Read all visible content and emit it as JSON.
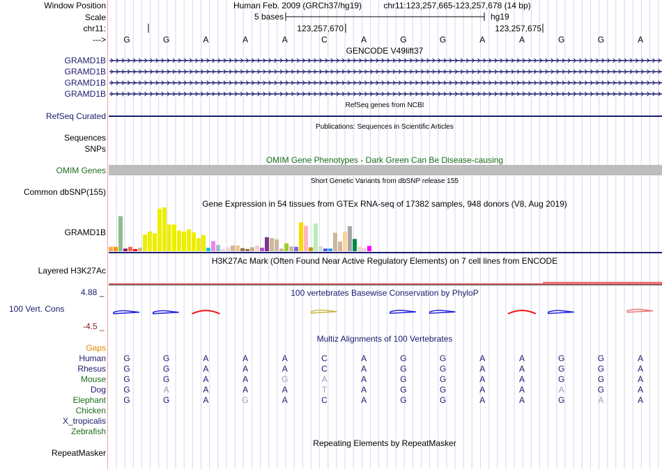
{
  "header": {
    "window_position_label": "Window Position",
    "assembly": "Human Feb. 2009 (GRCh37/hg19)",
    "position": "chr11:123,257,665-123,257,678 (14 bp)",
    "scale_label": "Scale",
    "scale_text": "5 bases",
    "scale_db": "hg19",
    "chrom_label": "chr11:",
    "tick1": "123,257,670",
    "tick2": "123,257,675",
    "strand_label": "--->",
    "bases": [
      "G",
      "G",
      "A",
      "A",
      "A",
      "C",
      "A",
      "G",
      "G",
      "A",
      "A",
      "G",
      "G",
      "A"
    ]
  },
  "tracks": {
    "gencode": {
      "title": "GENCODE V49lift37",
      "genes": [
        "GRAMD1B",
        "GRAMD1B",
        "GRAMD1B",
        "GRAMD1B"
      ],
      "color": "#1a1a6e"
    },
    "refseq": {
      "label": "RefSeq Curated",
      "title": "RefSeq genes from NCBI"
    },
    "publications": {
      "title": "Publications: Sequences in Scientific Articles",
      "label_line1": "Sequences",
      "label_line2": "SNPs"
    },
    "omim": {
      "title": "OMIM Gene Phenotypes - Dark Green Can Be Disease-causing",
      "label": "OMIM Genes",
      "color": "#bdbdbd"
    },
    "dbsnp": {
      "title": "Short Genetic Variants from dbSNP release 155",
      "label": "Common dbSNP(155)"
    },
    "gtex": {
      "title": "Gene Expression in 54 tissues from GTEx RNA-seq of 17382 samples, 948 donors (V8, Aug 2019)",
      "label": "GRAMD1B"
    },
    "h3k27ac": {
      "title": "H3K27Ac Mark (Often Found Near Active Regulatory Elements) on 7 cell lines from ENCODE",
      "label": "Layered H3K27Ac"
    },
    "phylop": {
      "title": "100 vertebrates Basewise Conservation by PhyloP",
      "label": "100 Vert. Cons",
      "max_label": "4.88 _",
      "min_label": "-4.5 _"
    },
    "multiz": {
      "title": "Multiz Alignments of 100 Vertebrates",
      "gaps_label": "Gaps",
      "species": [
        {
          "name": "Human",
          "color": "navy",
          "bases": [
            "G",
            "G",
            "A",
            "A",
            "A",
            "C",
            "A",
            "G",
            "G",
            "A",
            "A",
            "G",
            "G",
            "A"
          ],
          "dim": []
        },
        {
          "name": "Rhesus",
          "color": "navy",
          "bases": [
            "G",
            "G",
            "A",
            "A",
            "A",
            "C",
            "A",
            "G",
            "G",
            "A",
            "A",
            "G",
            "G",
            "A"
          ],
          "dim": []
        },
        {
          "name": "Mouse",
          "color": "green",
          "bases": [
            "G",
            "G",
            "A",
            "A",
            "G",
            "A",
            "A",
            "G",
            "G",
            "A",
            "A",
            "G",
            "G",
            "A"
          ],
          "dim": [
            4,
            5
          ]
        },
        {
          "name": "Dog",
          "color": "navy",
          "bases": [
            "G",
            "A",
            "A",
            "A",
            "A",
            "T",
            "A",
            "G",
            "G",
            "A",
            "A",
            "A",
            "G",
            "A"
          ],
          "dim": [
            1,
            5,
            11
          ]
        },
        {
          "name": "Elephant",
          "color": "green",
          "bases": [
            "G",
            "G",
            "A",
            "G",
            "A",
            "C",
            "A",
            "G",
            "G",
            "A",
            "A",
            "G",
            "A",
            "A"
          ],
          "dim": [
            3,
            12
          ]
        },
        {
          "name": "Chicken",
          "color": "green",
          "bases": [],
          "dim": []
        },
        {
          "name": "X_tropicalis",
          "color": "navy",
          "bases": [],
          "dim": []
        },
        {
          "name": "Zebrafish",
          "color": "green",
          "bases": [],
          "dim": []
        }
      ]
    },
    "repeatmasker": {
      "title": "Repeating Elements by RepeatMasker",
      "label": "RepeatMasker"
    }
  },
  "chart_data": {
    "type": "bar",
    "title": "Gene Expression in 54 tissues from GTEx RNA-seq of 17382 samples, 948 donors (V8, Aug 2019)",
    "xlabel": "",
    "ylabel": "",
    "categories_count": 54,
    "values": [
      0.1,
      0.1,
      0.8,
      0.06,
      0.1,
      0.05,
      0.08,
      0.38,
      0.45,
      0.41,
      0.97,
      1.0,
      0.61,
      0.61,
      0.47,
      0.45,
      0.5,
      0.43,
      0.3,
      0.37,
      0.08,
      0.23,
      0.14,
      0.05,
      0.09,
      0.13,
      0.13,
      0.07,
      0.05,
      0.09,
      0.13,
      0.08,
      0.32,
      0.3,
      0.27,
      0.06,
      0.18,
      0.11,
      0.1,
      0.66,
      0.58,
      0.09,
      0.63,
      0.11,
      0.06,
      0.06,
      0.42,
      0.22,
      0.45,
      0.57,
      0.28,
      0.1,
      0.07,
      0.12
    ],
    "colors": [
      "#ffa54f",
      "#ee9a00",
      "#8fbc8f",
      "#8b1c62",
      "#ee6a50",
      "#ff0000",
      "#cdb79e",
      "#eeee00",
      "#eeee00",
      "#eeee00",
      "#eeee00",
      "#eeee00",
      "#eeee00",
      "#eeee00",
      "#eeee00",
      "#eeee00",
      "#eeee00",
      "#eeee00",
      "#eeee00",
      "#eeee00",
      "#00cdcd",
      "#ee82ee",
      "#9ac0cd",
      "#eed5d2",
      "#eed5d2",
      "#cdb79e",
      "#eec591",
      "#8b7355",
      "#8b7355",
      "#cdaa7d",
      "#eed5d2",
      "#b452cd",
      "#7a378b",
      "#cdb79e",
      "#cdb79e",
      "#cdb79e",
      "#9acd32",
      "#cdb79e",
      "#7b68ee",
      "#ffd700",
      "#ffb6c1",
      "#cd950c",
      "#b4eeb4",
      "#d9d9d9",
      "#3a5fcd",
      "#1e90ff",
      "#cdb79e",
      "#cdb79e",
      "#ffd39b",
      "#a6a6a6",
      "#008b45",
      "#eed5d2",
      "#eed5d2",
      "#ff00ff"
    ],
    "ylim": [
      0,
      1
    ]
  },
  "conservation_data": {
    "type": "line",
    "ylim": [
      -4.5,
      4.88
    ],
    "segments": [
      {
        "base_index": 0,
        "value": -0.6,
        "color": "#2020e0"
      },
      {
        "base_index": 1,
        "value": -0.6,
        "color": "#2020e0"
      },
      {
        "base_index": 2,
        "value": 0.5,
        "color": "#ee1010"
      },
      {
        "base_index": 5,
        "value": -0.3,
        "color": "#c8b84a"
      },
      {
        "base_index": 7,
        "value": -0.4,
        "color": "#2020e0"
      },
      {
        "base_index": 8,
        "value": -0.4,
        "color": "#2020e0"
      },
      {
        "base_index": 10,
        "value": 0.6,
        "color": "#ee1010"
      },
      {
        "base_index": 11,
        "value": -0.5,
        "color": "#2020e0"
      },
      {
        "base_index": 13,
        "value": 0.1,
        "color": "#ee7070"
      }
    ]
  }
}
